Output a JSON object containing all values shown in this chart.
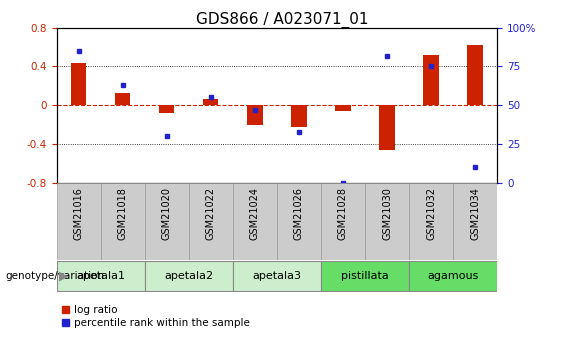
{
  "title": "GDS866 / A023071_01",
  "samples": [
    "GSM21016",
    "GSM21018",
    "GSM21020",
    "GSM21022",
    "GSM21024",
    "GSM21026",
    "GSM21028",
    "GSM21030",
    "GSM21032",
    "GSM21034"
  ],
  "log_ratios": [
    0.44,
    0.13,
    -0.08,
    0.06,
    -0.2,
    -0.22,
    -0.06,
    -0.46,
    0.52,
    0.62
  ],
  "percentile_ranks": [
    85,
    63,
    30,
    55,
    47,
    33,
    0,
    82,
    75,
    10
  ],
  "groups": [
    {
      "label": "apetala1",
      "indices": [
        0,
        1
      ],
      "color": "#cceecc"
    },
    {
      "label": "apetala2",
      "indices": [
        2,
        3
      ],
      "color": "#cceecc"
    },
    {
      "label": "apetala3",
      "indices": [
        4,
        5
      ],
      "color": "#cceecc"
    },
    {
      "label": "pistillata",
      "indices": [
        6,
        7
      ],
      "color": "#66dd66"
    },
    {
      "label": "agamous",
      "indices": [
        8,
        9
      ],
      "color": "#66dd66"
    }
  ],
  "ylim_left": [
    -0.8,
    0.8
  ],
  "ylim_right": [
    0,
    100
  ],
  "yticks_left": [
    -0.8,
    -0.4,
    0.0,
    0.4,
    0.8
  ],
  "yticks_right": [
    0,
    25,
    50,
    75,
    100
  ],
  "bar_color": "#cc2200",
  "dot_color": "#2222cc",
  "zero_line_color": "#cc2200",
  "dot_gridline_color": "#555555",
  "bg_color": "#ffffff",
  "sample_box_color": "#cccccc",
  "bar_width": 0.35,
  "title_fontsize": 11,
  "tick_fontsize": 7.5,
  "label_fontsize": 7,
  "legend_fontsize": 7.5
}
